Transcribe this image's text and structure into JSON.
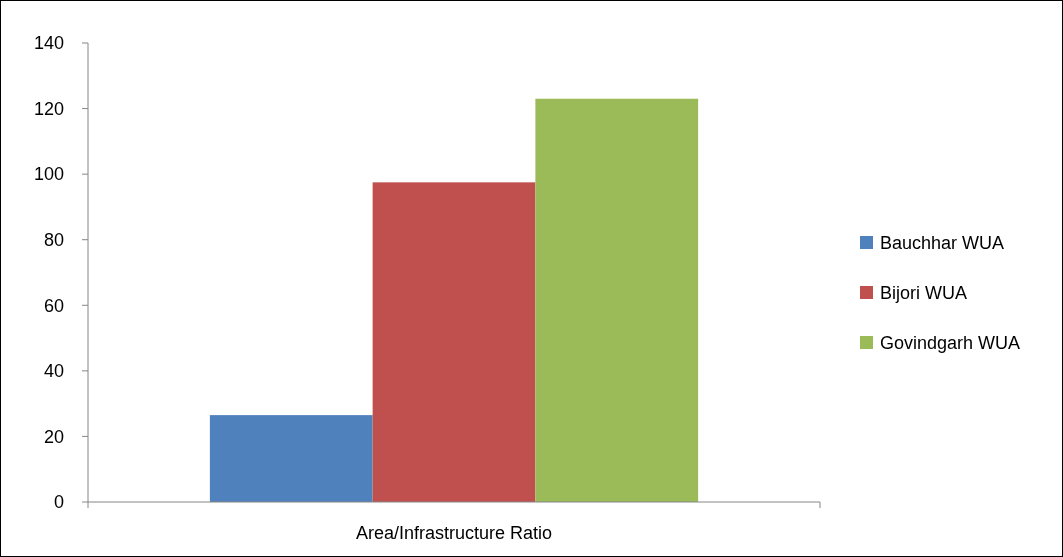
{
  "chart_data": {
    "type": "bar",
    "categories": [
      "Area/Infrastructure Ratio"
    ],
    "series": [
      {
        "name": "Bauchhar WUA",
        "color": "#4f81bd",
        "values": [
          26.5
        ]
      },
      {
        "name": "Bijori WUA",
        "color": "#c0504d",
        "values": [
          97.5
        ]
      },
      {
        "name": "Govindgarh WUA",
        "color": "#9bbb59",
        "values": [
          123
        ]
      }
    ],
    "ylim": [
      0,
      140
    ],
    "yticks": [
      0,
      20,
      40,
      60,
      80,
      100,
      120,
      140
    ],
    "grid": false,
    "legend": "right"
  }
}
